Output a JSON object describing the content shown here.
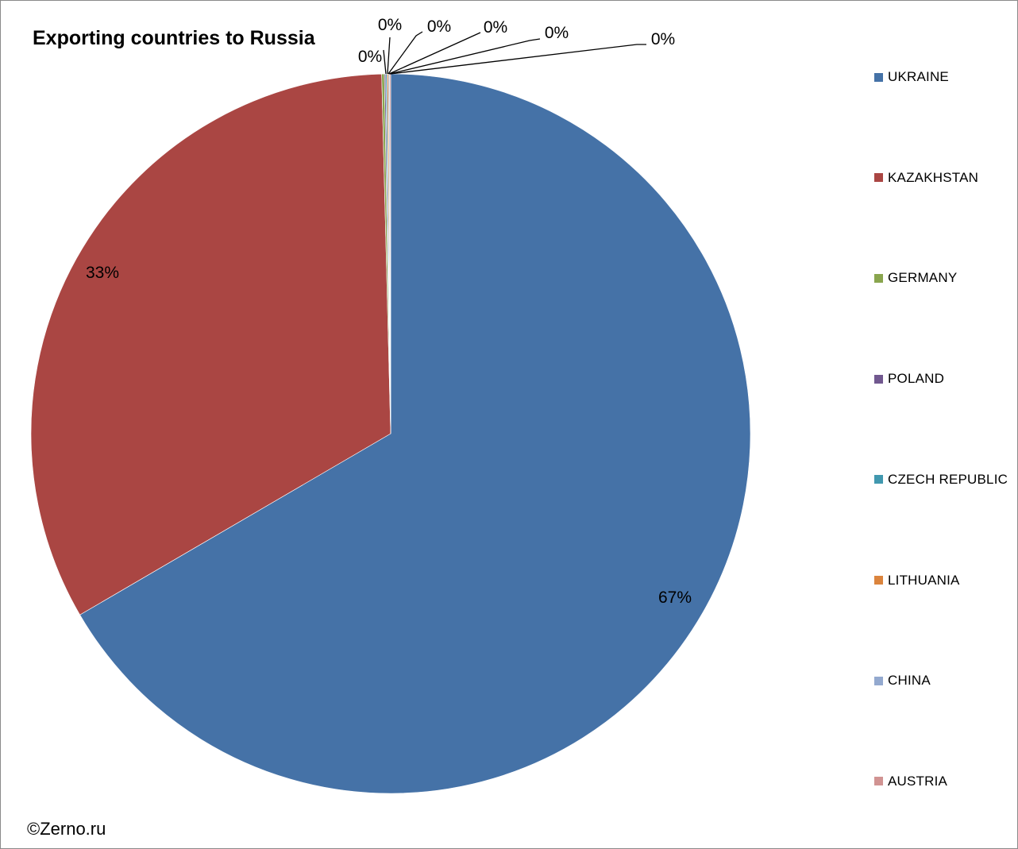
{
  "chart_data": {
    "type": "pie",
    "title": "Exporting countries to Russia",
    "slices": [
      {
        "name": "UKRAINE",
        "value": 66.6,
        "label": "67%",
        "color": "#4572A7"
      },
      {
        "name": "KAZAKHSTAN",
        "value": 33.0,
        "label": "33%",
        "color": "#AA4643"
      },
      {
        "name": "GERMANY",
        "value": 0.12,
        "label": "0%",
        "color": "#89A54E"
      },
      {
        "name": "POLAND",
        "value": 0.06,
        "label": "0%",
        "color": "#71588F"
      },
      {
        "name": "CZECH REPUBLIC",
        "value": 0.06,
        "label": "0%",
        "color": "#4198AF"
      },
      {
        "name": "LITHUANIA",
        "value": 0.06,
        "label": "0%",
        "color": "#DB843D"
      },
      {
        "name": "CHINA",
        "value": 0.05,
        "label": "0%",
        "color": "#93A9CF"
      },
      {
        "name": "AUSTRIA",
        "value": 0.05,
        "label": "0%",
        "color": "#D19392"
      }
    ],
    "legend_position": "right"
  },
  "footer": {
    "copyright": "©Zerno.ru"
  }
}
